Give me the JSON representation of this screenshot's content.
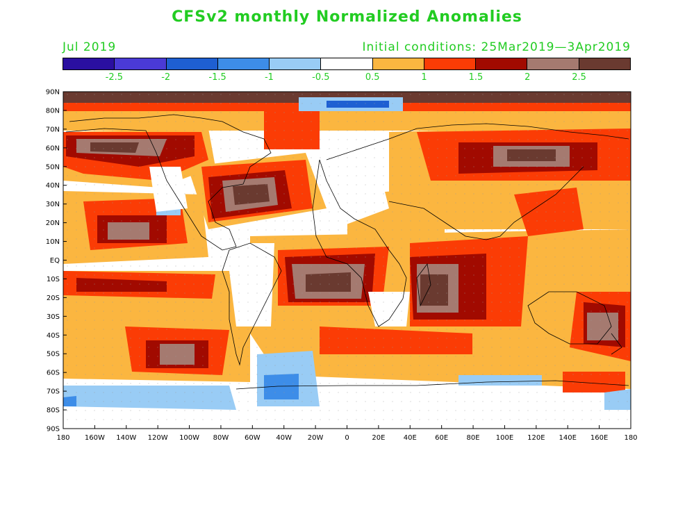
{
  "title": "CFSv2 monthly Normalized Anomalies",
  "month_label": "Jul 2019",
  "initial_conditions": "Initial conditions: 25Mar2019—3Apr2019",
  "colorbar": {
    "colors": [
      "#2a0fa0",
      "#4a3ad6",
      "#1e5fd2",
      "#3d8de8",
      "#99ccf5",
      "#ffffff",
      "#fbb640",
      "#fb3c05",
      "#a10a00",
      "#a57a70",
      "#6a3a30"
    ],
    "labels": [
      "-2.5",
      "-2",
      "-1.5",
      "-1",
      "-0.5",
      "0.5",
      "1",
      "1.5",
      "2",
      "2.5"
    ]
  },
  "map": {
    "lat_labels": [
      "90N",
      "80N",
      "70N",
      "60N",
      "50N",
      "40N",
      "30N",
      "20N",
      "10N",
      "EQ",
      "10S",
      "20S",
      "30S",
      "40S",
      "50S",
      "60S",
      "70S",
      "80S",
      "90S"
    ],
    "lon_labels": [
      "180",
      "160W",
      "140W",
      "120W",
      "100W",
      "80W",
      "60W",
      "40W",
      "20W",
      "0",
      "20E",
      "40E",
      "60E",
      "80E",
      "100E",
      "120E",
      "140E",
      "160E",
      "180"
    ]
  }
}
